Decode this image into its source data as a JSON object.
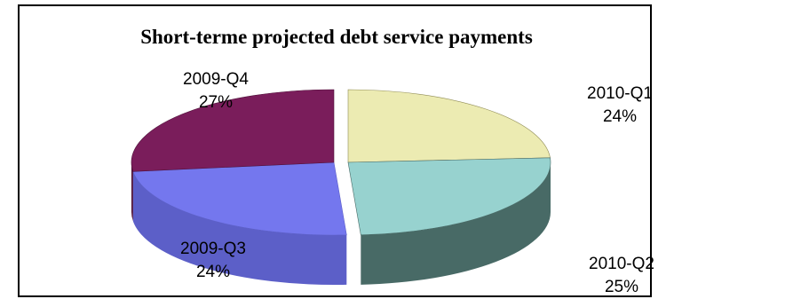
{
  "chart_data": {
    "type": "pie",
    "title": "Short-terme projected debt service payments",
    "slices": [
      {
        "label": "2010-Q1",
        "value": 24,
        "pct_label": "24%",
        "top_color": "#ecebb2",
        "side_color": "#8f8b55"
      },
      {
        "label": "2010-Q2",
        "value": 25,
        "pct_label": "25%",
        "top_color": "#97d2cf",
        "side_color": "#486a66"
      },
      {
        "label": "2009-Q3",
        "value": 24,
        "pct_label": "24%",
        "top_color": "#7477ee",
        "side_color": "#5c5fc8"
      },
      {
        "label": "2009-Q4",
        "value": 27,
        "pct_label": "27%",
        "top_color": "#7a1d5b",
        "side_color": "#4d0f37"
      }
    ],
    "legend": "none"
  }
}
